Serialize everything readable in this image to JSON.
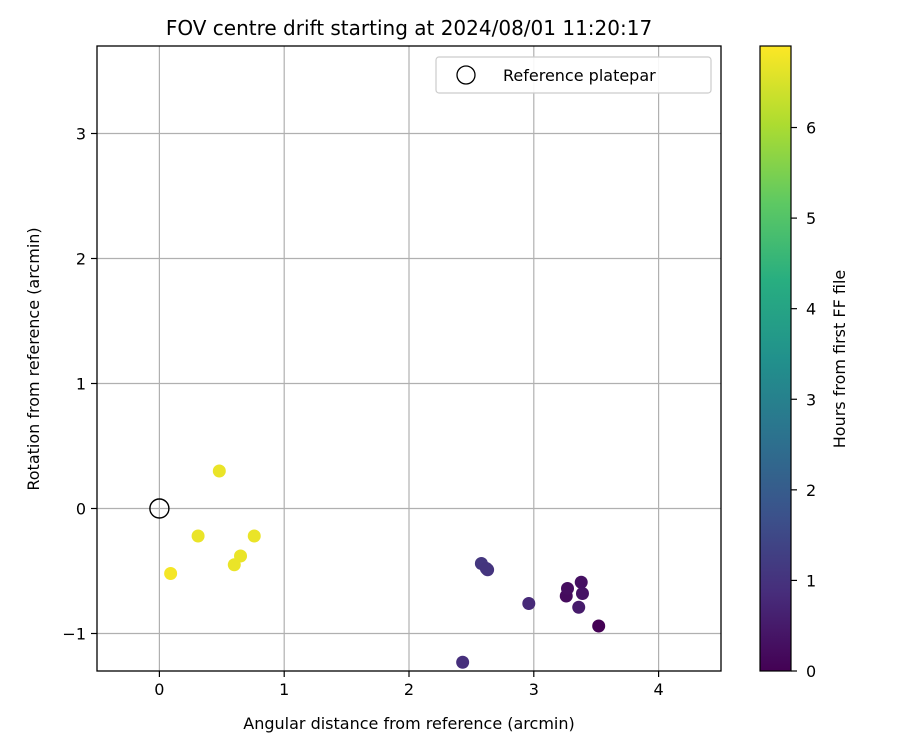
{
  "chart_data": {
    "type": "scatter",
    "title": "FOV centre drift starting at 2024/08/01 11:20:17",
    "xlabel": "Angular distance from reference (arcmin)",
    "ylabel": "Rotation from reference (arcmin)",
    "xlim": [
      -0.5,
      4.5
    ],
    "ylim": [
      -1.3,
      3.7
    ],
    "xticks": [
      0,
      1,
      2,
      3,
      4
    ],
    "xtick_labels": [
      "0",
      "1",
      "2",
      "3",
      "4"
    ],
    "yticks": [
      -1,
      0,
      1,
      2,
      3
    ],
    "ytick_labels": [
      "−1",
      "0",
      "1",
      "2",
      "3"
    ],
    "grid": true,
    "legend_position": "top-right",
    "legend": [
      {
        "label": "Reference platepar",
        "marker": "hollow-circle",
        "color": "#000000"
      }
    ],
    "reference_point": {
      "x": 0,
      "y": 0
    },
    "colorbar": {
      "label": "Hours from first FF file",
      "colormap": "viridis",
      "range": [
        0,
        6.9
      ],
      "ticks": [
        0,
        1,
        2,
        3,
        4,
        5,
        6
      ],
      "tick_labels": [
        "0",
        "1",
        "2",
        "3",
        "4",
        "5",
        "6"
      ]
    },
    "points": [
      {
        "x": 3.52,
        "y": -0.94,
        "hours": 0.0
      },
      {
        "x": 3.26,
        "y": -0.7,
        "hours": 0.2
      },
      {
        "x": 3.27,
        "y": -0.64,
        "hours": 0.25
      },
      {
        "x": 3.38,
        "y": -0.59,
        "hours": 0.3
      },
      {
        "x": 3.39,
        "y": -0.68,
        "hours": 0.35
      },
      {
        "x": 3.36,
        "y": -0.79,
        "hours": 0.5
      },
      {
        "x": 2.96,
        "y": -0.76,
        "hours": 0.8
      },
      {
        "x": 2.63,
        "y": -0.49,
        "hours": 1.0
      },
      {
        "x": 2.58,
        "y": -0.44,
        "hours": 1.1
      },
      {
        "x": 2.62,
        "y": -0.48,
        "hours": 1.05
      },
      {
        "x": 2.43,
        "y": -1.23,
        "hours": 0.9
      },
      {
        "x": 0.48,
        "y": 0.3,
        "hours": 6.7
      },
      {
        "x": 0.31,
        "y": -0.22,
        "hours": 6.7
      },
      {
        "x": 0.76,
        "y": -0.22,
        "hours": 6.7
      },
      {
        "x": 0.65,
        "y": -0.38,
        "hours": 6.7
      },
      {
        "x": 0.6,
        "y": -0.45,
        "hours": 6.7
      },
      {
        "x": 0.09,
        "y": -0.52,
        "hours": 6.8
      }
    ]
  }
}
